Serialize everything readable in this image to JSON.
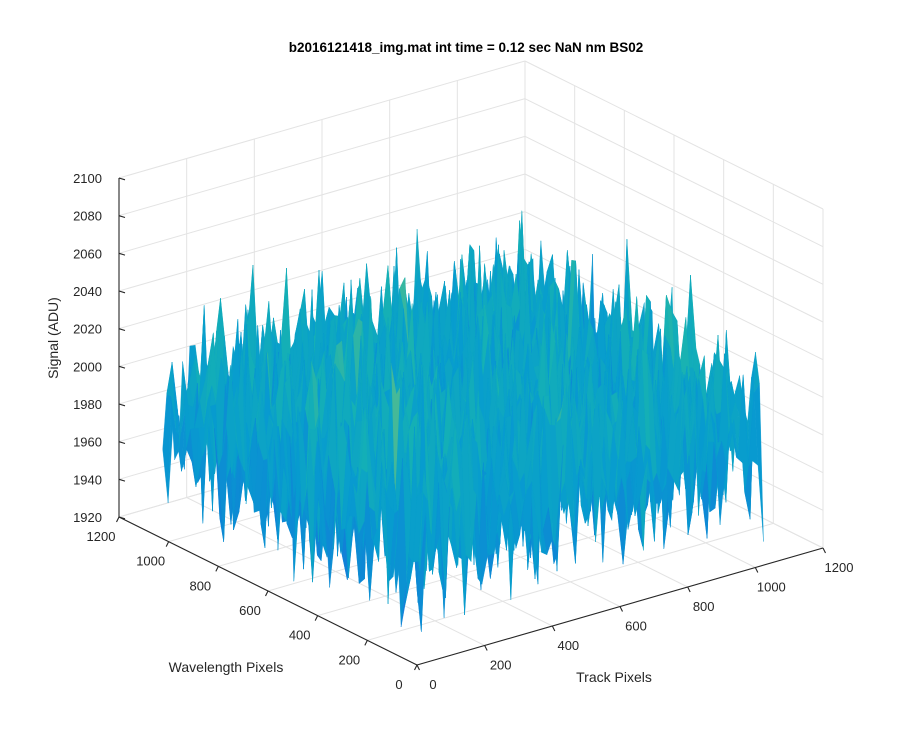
{
  "chart_data": {
    "type": "surface",
    "title": "b2016121418_img.mat int time = 0.12 sec  NaN nm BS02",
    "xlabel": "Track Pixels",
    "ylabel": "Wavelength Pixels",
    "zlabel": "Signal (ADU)",
    "xlim": [
      0,
      1200
    ],
    "ylim": [
      0,
      1200
    ],
    "zlim": [
      1920,
      2100
    ],
    "xticks": [
      "0",
      "200",
      "400",
      "600",
      "800",
      "1000",
      "1200"
    ],
    "yticks": [
      "0",
      "200",
      "400",
      "600",
      "800",
      "1000",
      "1200"
    ],
    "zticks": [
      "1920",
      "1940",
      "1960",
      "1980",
      "2000",
      "2020",
      "2040",
      "2060",
      "2080",
      "2100"
    ],
    "grid": true,
    "colormap": "parula",
    "surface": {
      "x_range": [
        0,
        1024
      ],
      "y_range": [
        0,
        1024
      ],
      "mean_signal": 1990,
      "noise_amplitude": 25,
      "min_signal": 1932,
      "max_signal": 2082,
      "grid_samples": 64
    }
  }
}
